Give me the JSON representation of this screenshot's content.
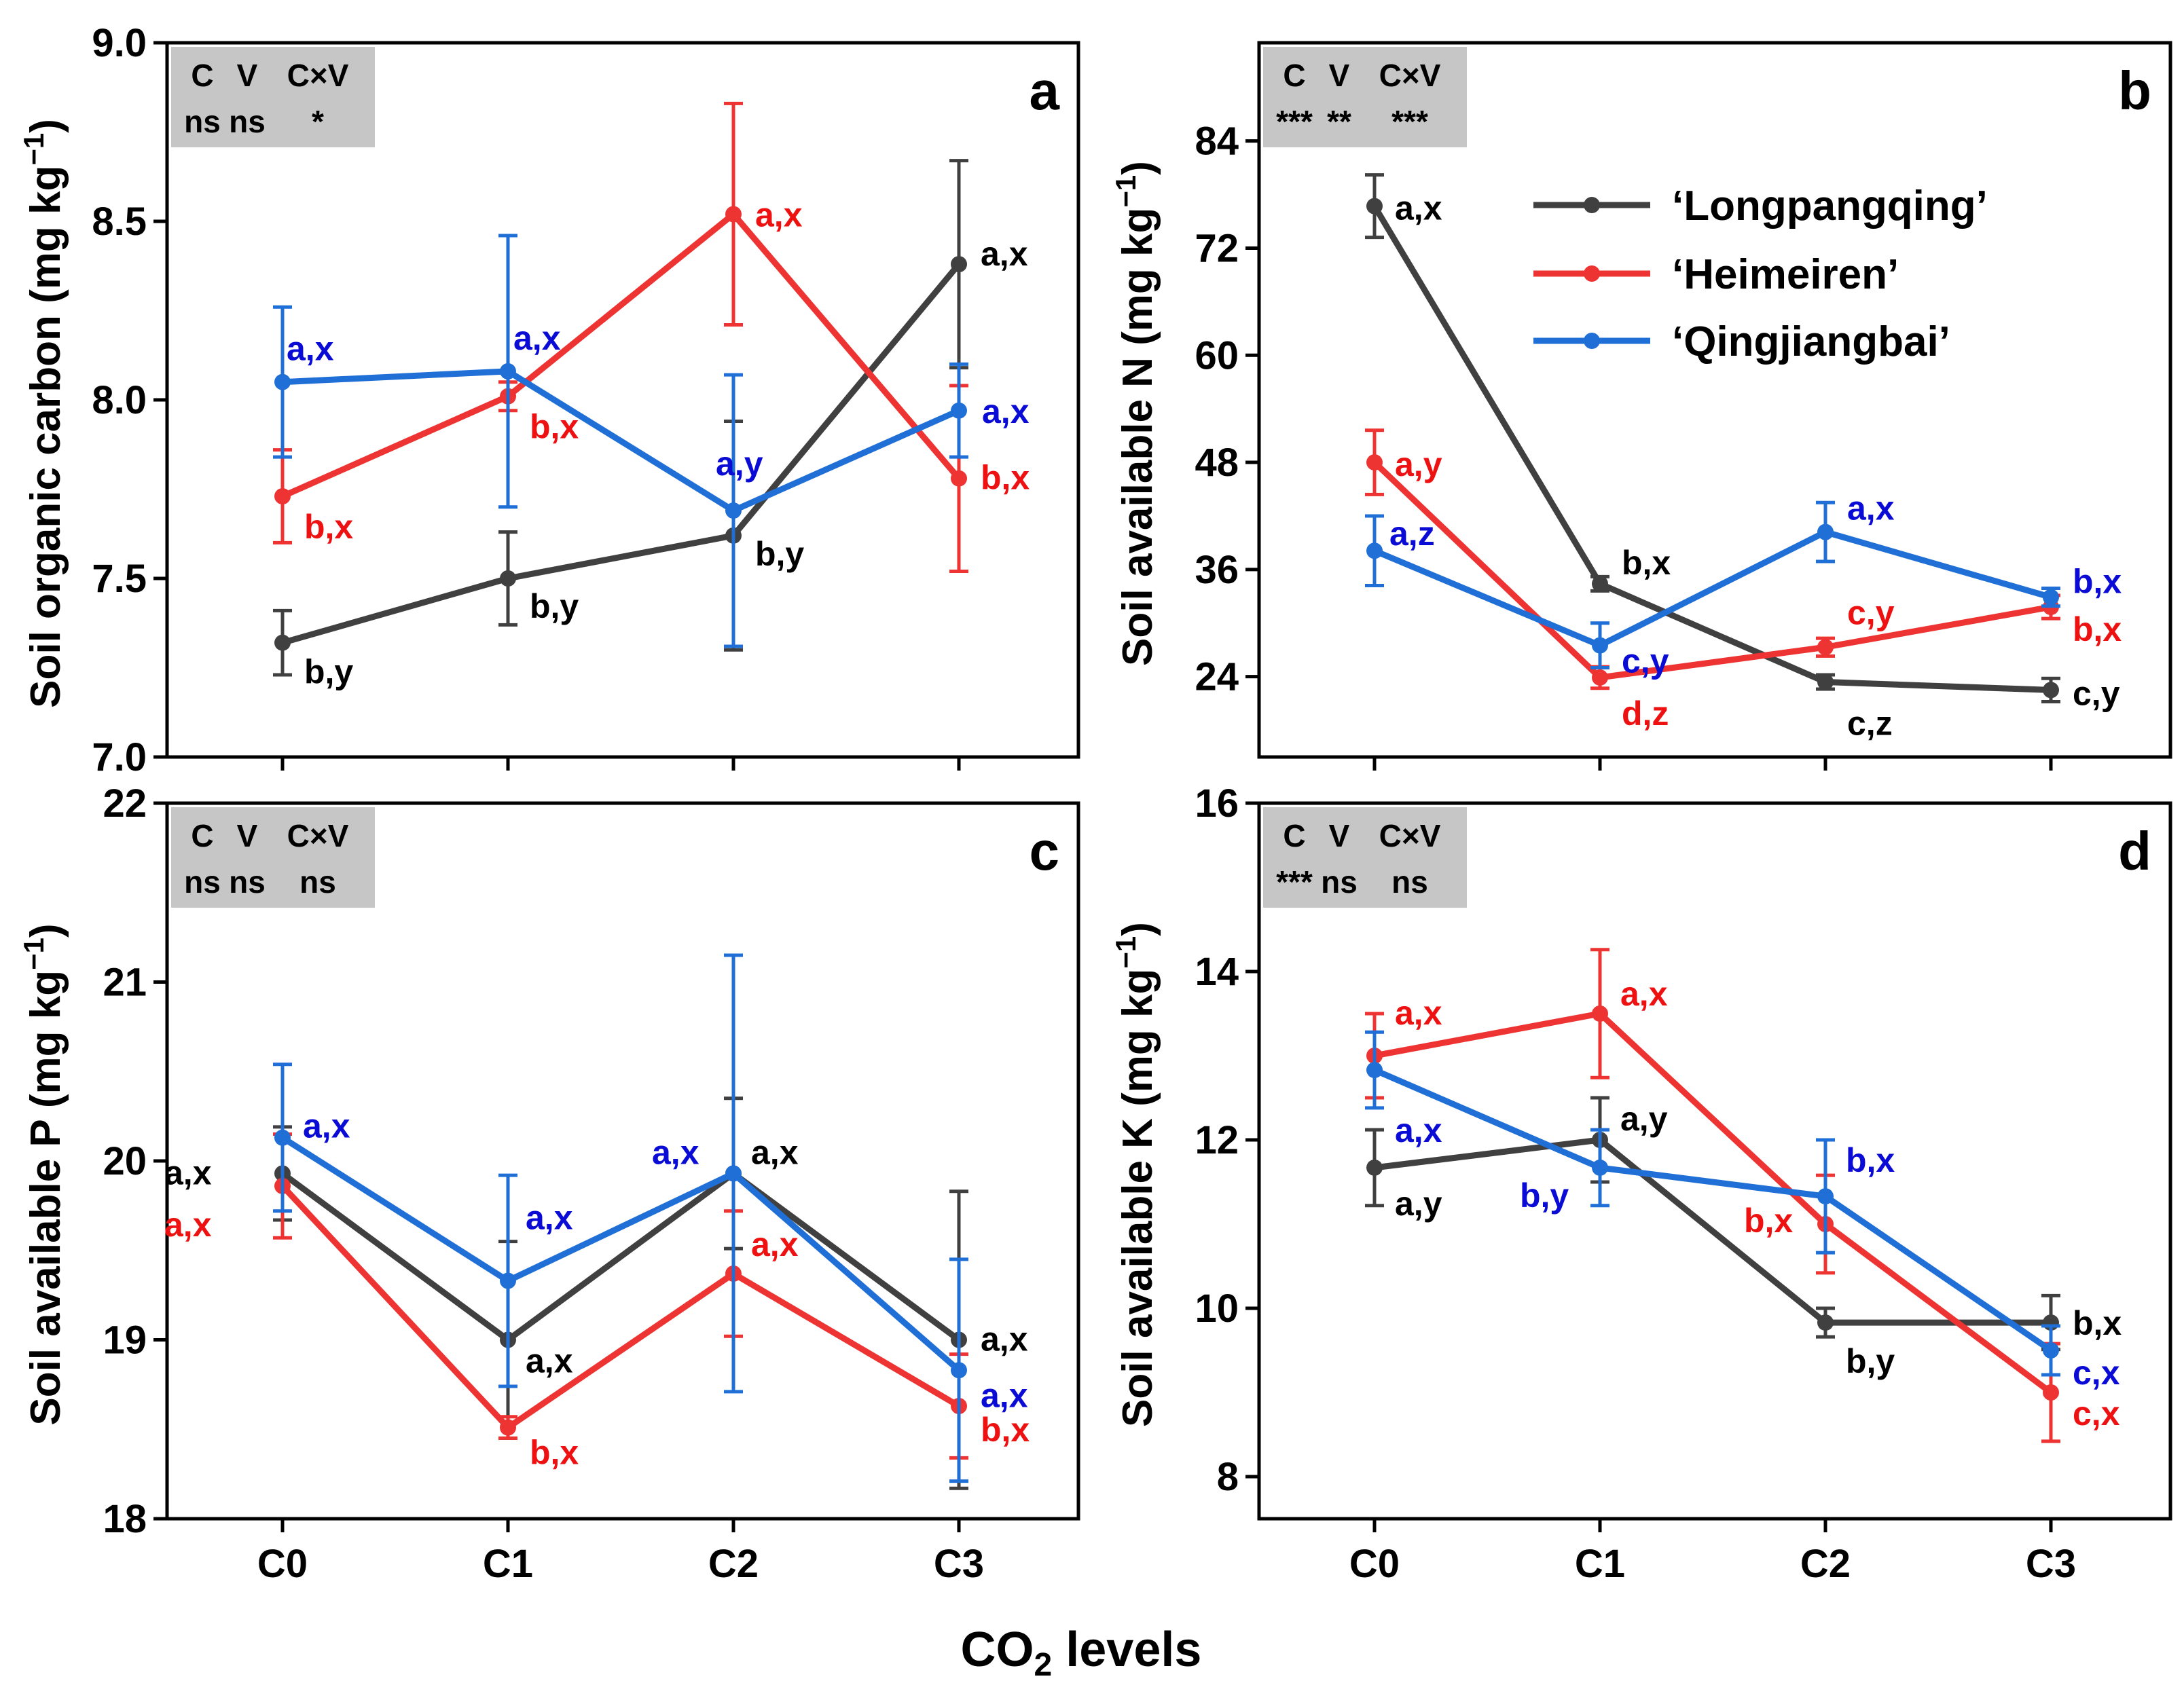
{
  "figure": {
    "xlabel_main": "CO",
    "xlabel_sub": "2",
    "xlabel_tail": " levels"
  },
  "colors": {
    "Longpangqing": "#404040",
    "Heimeiren": "#ee3333",
    "Qingjiangbai": "#1f6fd6",
    "label_Longpangqing": "#000000",
    "label_Heimeiren": "#ee1111",
    "label_Qingjiangbai": "#0b0bd6",
    "stat_box": "#c6c6c6"
  },
  "legend": [
    "‘Longpangqing’",
    "‘Heimeiren’",
    "‘Qingjiangbai’"
  ],
  "chart_data": [
    {
      "panel": "a",
      "type": "line",
      "ylabel": "Soil organic carbon (mg kg",
      "ylabel_sup": "−1",
      "ylabel_end": ")",
      "categories": [
        "C0",
        "C1",
        "C2",
        "C3"
      ],
      "ylim": [
        7.0,
        9.0
      ],
      "yticks": [
        7.0,
        7.5,
        8.0,
        8.5,
        9.0
      ],
      "tick_labels": [
        "7.0",
        "7.5",
        "8.0",
        "8.5",
        "9.0"
      ],
      "stats": {
        "header": [
          "C",
          "V",
          "C×V"
        ],
        "values": [
          "ns",
          "ns",
          "*"
        ]
      },
      "series": [
        {
          "name": "‘Longpangqing’",
          "values": [
            7.32,
            7.5,
            7.62,
            8.38
          ],
          "errors": [
            0.09,
            0.13,
            0.32,
            0.29
          ],
          "labels": [
            "b,y",
            "b,y",
            "b,y",
            "a,x"
          ]
        },
        {
          "name": "‘Heimeiren’",
          "values": [
            7.73,
            8.01,
            8.52,
            7.78
          ],
          "errors": [
            0.13,
            0.04,
            0.31,
            0.26
          ],
          "labels": [
            "b,x",
            "b,x",
            "a,x",
            "b,x"
          ]
        },
        {
          "name": "‘Qingjiangbai’",
          "values": [
            8.05,
            8.08,
            7.69,
            7.97
          ],
          "errors": [
            0.21,
            0.38,
            0.38,
            0.13
          ],
          "labels": [
            "a,x",
            "a,x",
            "a,y",
            "a,x"
          ]
        }
      ]
    },
    {
      "panel": "b",
      "type": "line",
      "ylabel": "Soil available N (mg kg",
      "ylabel_sup": "−1",
      "ylabel_end": ")",
      "categories": [
        "C0",
        "C1",
        "C2",
        "C3"
      ],
      "ylim": [
        15,
        95
      ],
      "yticks": [
        24,
        36,
        48,
        60,
        72,
        84
      ],
      "tick_labels": [
        "24",
        "36",
        "48",
        "60",
        "72",
        "84"
      ],
      "stats": {
        "header": [
          "C",
          "V",
          "C×V"
        ],
        "values": [
          "***",
          "**",
          "***"
        ]
      },
      "series": [
        {
          "name": "‘Longpangqing’",
          "values": [
            76.7,
            34.4,
            23.4,
            22.5
          ],
          "errors": [
            3.5,
            0.8,
            0.8,
            1.3
          ],
          "labels": [
            "a,x",
            "b,x",
            "c,z",
            "c,y"
          ]
        },
        {
          "name": "‘Heimeiren’",
          "values": [
            48.0,
            23.9,
            27.3,
            31.8
          ],
          "errors": [
            3.6,
            1.2,
            1.0,
            1.3
          ],
          "labels": [
            "a,y",
            "d,z",
            "c,y",
            "b,x"
          ]
        },
        {
          "name": "‘Qingjiangbai’",
          "values": [
            38.1,
            27.5,
            40.2,
            32.9
          ],
          "errors": [
            3.9,
            2.5,
            3.3,
            1.0
          ],
          "labels": [
            "a,z",
            "c,y",
            "a,x",
            "b,x"
          ]
        }
      ]
    },
    {
      "panel": "c",
      "type": "line",
      "ylabel": "Soil available P (mg kg",
      "ylabel_sup": "−1",
      "ylabel_end": ")",
      "categories": [
        "C0",
        "C1",
        "C2",
        "C3"
      ],
      "ylim": [
        18,
        22
      ],
      "yticks": [
        18,
        19,
        20,
        21,
        22
      ],
      "tick_labels": [
        "18",
        "19",
        "20",
        "21",
        "22"
      ],
      "stats": {
        "header": [
          "C",
          "V",
          "C×V"
        ],
        "values": [
          "ns",
          "ns",
          "ns"
        ]
      },
      "series": [
        {
          "name": "‘Longpangqing’",
          "values": [
            19.93,
            19.0,
            19.93,
            19.0
          ],
          "errors": [
            0.26,
            0.55,
            0.42,
            0.83
          ],
          "labels": [
            "a,x",
            "a,x",
            "a,x",
            "a,x"
          ]
        },
        {
          "name": "‘Heimeiren’",
          "values": [
            19.86,
            18.51,
            19.37,
            18.63
          ],
          "errors": [
            0.29,
            0.06,
            0.35,
            0.29
          ],
          "labels": [
            "a,x",
            "b,x",
            "a,x",
            "b,x"
          ]
        },
        {
          "name": "‘Qingjiangbai’",
          "values": [
            20.13,
            19.33,
            19.93,
            18.83
          ],
          "errors": [
            0.41,
            0.59,
            1.22,
            0.62
          ],
          "labels": [
            "a,x",
            "a,x",
            "a,x",
            "a,x"
          ]
        }
      ]
    },
    {
      "panel": "d",
      "type": "line",
      "ylabel": "Soil available K (mg kg",
      "ylabel_sup": "−1",
      "ylabel_end": ")",
      "categories": [
        "C0",
        "C1",
        "C2",
        "C3"
      ],
      "ylim": [
        7.5,
        16
      ],
      "yticks": [
        8,
        10,
        12,
        14,
        16
      ],
      "tick_labels": [
        "8",
        "10",
        "12",
        "14",
        "16"
      ],
      "stats": {
        "header": [
          "C",
          "V",
          "C×V"
        ],
        "values": [
          "***",
          "ns",
          "ns"
        ]
      },
      "series": [
        {
          "name": "‘Longpangqing’",
          "values": [
            11.67,
            12.0,
            9.83,
            9.83
          ],
          "errors": [
            0.45,
            0.5,
            0.17,
            0.32
          ],
          "labels": [
            "a,y",
            "a,y",
            "b,y",
            "b,x"
          ]
        },
        {
          "name": "‘Heimeiren’",
          "values": [
            13.0,
            13.5,
            11.0,
            9.0
          ],
          "errors": [
            0.5,
            0.76,
            0.58,
            0.58
          ],
          "labels": [
            "a,x",
            "a,x",
            "b,x",
            "c,x"
          ]
        },
        {
          "name": "‘Qingjiangbai’",
          "values": [
            12.83,
            11.67,
            11.33,
            9.5
          ],
          "errors": [
            0.45,
            0.45,
            0.67,
            0.29
          ],
          "labels": [
            "a,x",
            "b,y",
            "b,x",
            "c,x"
          ]
        }
      ]
    }
  ]
}
